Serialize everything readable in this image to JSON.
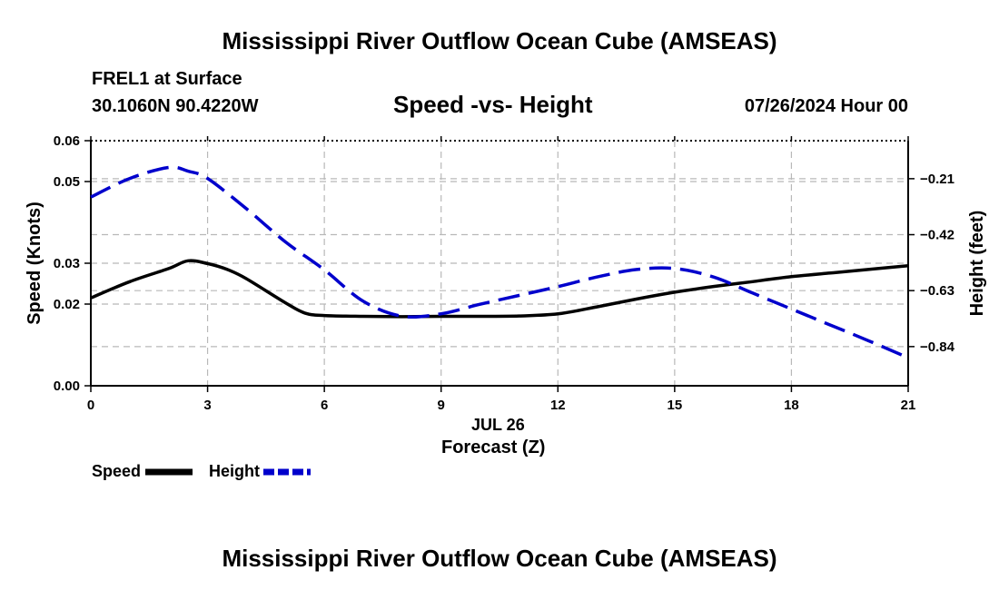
{
  "header": {
    "title": "Mississippi River Outflow Ocean Cube (AMSEAS)",
    "station": "FREL1 at Surface",
    "coords": "30.1060N  90.4220W",
    "date": "07/26/2024 Hour 00"
  },
  "footer": {
    "title": "Mississippi River Outflow Ocean Cube (AMSEAS)"
  },
  "chart_data": {
    "type": "line",
    "title": "Speed -vs- Height",
    "xlabel": "Forecast (Z)",
    "xsublabel": "JUL 26",
    "ylabel": "Speed (Knots)",
    "y2label": "Height (feet)",
    "xlim": [
      0,
      21
    ],
    "ylim": [
      0,
      0.06
    ],
    "y2lim": [
      -0.987,
      -0.0674
    ],
    "x_ticks": [
      0,
      3,
      6,
      9,
      12,
      15,
      18,
      21
    ],
    "y_ticks": [
      "0.00",
      "0.02",
      "0.03",
      "0.05",
      "0.06"
    ],
    "y_tick_values": [
      0,
      0.02,
      0.03,
      0.05,
      0.06
    ],
    "y2_ticks": [
      "-0.21",
      "-0.42",
      "-0.63",
      "-0.84"
    ],
    "y2_tick_values": [
      -0.21,
      -0.42,
      -0.63,
      -0.84
    ],
    "grid": true,
    "series": [
      {
        "name": "Speed",
        "axis": "left",
        "color": "#000000",
        "style": "solid",
        "x": [
          0,
          1,
          2,
          2.5,
          3,
          3.5,
          4,
          5,
          5.5,
          6,
          7,
          8,
          9,
          10,
          11,
          12,
          13,
          14,
          15,
          16,
          17,
          18,
          19,
          20,
          21
        ],
        "values": [
          0.0215,
          0.0255,
          0.0287,
          0.0306,
          0.0299,
          0.0285,
          0.0262,
          0.0203,
          0.0178,
          0.0172,
          0.017,
          0.0169,
          0.017,
          0.017,
          0.0171,
          0.0176,
          0.0193,
          0.0212,
          0.0229,
          0.0243,
          0.0255,
          0.0267,
          0.0276,
          0.0285,
          0.0294
        ]
      },
      {
        "name": "Height",
        "axis": "right",
        "color": "#0000cc",
        "style": "dashed",
        "x": [
          0,
          1,
          2,
          2.5,
          3,
          4,
          5,
          6,
          7,
          8,
          9,
          10,
          11,
          12,
          13,
          14,
          15,
          16,
          17,
          18,
          19,
          20,
          21
        ],
        "values": [
          -0.279,
          -0.209,
          -0.168,
          -0.182,
          -0.209,
          -0.323,
          -0.447,
          -0.552,
          -0.67,
          -0.726,
          -0.717,
          -0.681,
          -0.648,
          -0.615,
          -0.579,
          -0.551,
          -0.547,
          -0.579,
          -0.639,
          -0.699,
          -0.759,
          -0.819,
          -0.882
        ]
      }
    ],
    "legend": {
      "placement": "bottom-left",
      "entries": [
        "Speed",
        "Height"
      ]
    }
  }
}
